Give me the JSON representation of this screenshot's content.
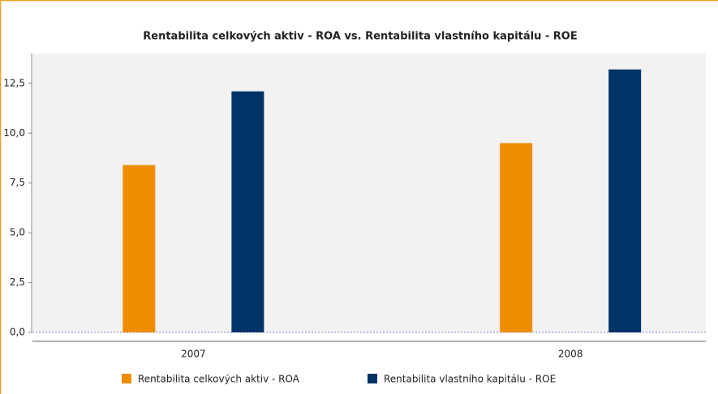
{
  "chart_data": {
    "type": "bar",
    "title": "Rentabilita celkových aktiv - ROA vs. Rentabilita vlastního kapitálu - ROE",
    "categories": [
      "2007",
      "2008"
    ],
    "series": [
      {
        "name": "Rentabilita celkových aktiv - ROA",
        "color": "#f08c00",
        "values": [
          8.4,
          9.5
        ]
      },
      {
        "name": "Rentabilita vlastního kapitálu - ROE",
        "color": "#003366",
        "values": [
          12.1,
          13.2
        ]
      }
    ],
    "ylim": [
      0,
      14
    ],
    "yticks": [
      {
        "value": 0,
        "label": "0,0"
      },
      {
        "value": 2.5,
        "label": "2,5"
      },
      {
        "value": 5,
        "label": "5,0"
      },
      {
        "value": 7.5,
        "label": "7,5"
      },
      {
        "value": 10,
        "label": "10,0"
      },
      {
        "value": 12.5,
        "label": "12,5"
      }
    ],
    "legend": "bottom"
  }
}
